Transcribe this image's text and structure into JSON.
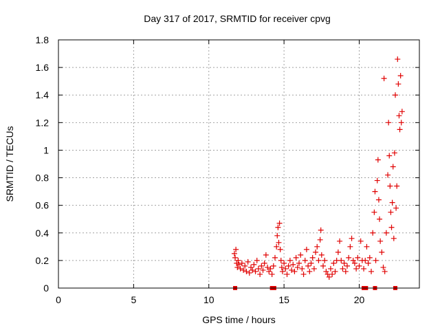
{
  "chart_data": {
    "type": "scatter",
    "title": "Day 317 of 2017, SRMTID for receiver cpvg",
    "xlabel": "GPS time / hours",
    "ylabel": "SRMTID / TECUs",
    "xlim": [
      0,
      24
    ],
    "ylim": [
      0,
      1.8
    ],
    "xticks": [
      0,
      5,
      10,
      15,
      20
    ],
    "yticks": [
      0,
      0.2,
      0.4,
      0.6,
      0.8,
      1,
      1.2,
      1.4,
      1.6,
      1.8
    ],
    "xtick_labels": [
      "0",
      "5",
      "10",
      "15",
      "20"
    ],
    "ytick_labels": [
      "0",
      "0.2",
      "0.4",
      "0.6",
      "0.8",
      "1",
      "1.2",
      "1.4",
      "1.6",
      "1.8"
    ],
    "grid": true,
    "marker": "+",
    "color": "#e00000",
    "series": [
      {
        "name": "SRMTID",
        "points": [
          [
            11.7,
            0.25
          ],
          [
            11.75,
            0.22
          ],
          [
            11.8,
            0.28
          ],
          [
            11.85,
            0.18
          ],
          [
            11.9,
            0.15
          ],
          [
            11.95,
            0.2
          ],
          [
            12.0,
            0.17
          ],
          [
            12.1,
            0.14
          ],
          [
            12.2,
            0.18
          ],
          [
            12.3,
            0.13
          ],
          [
            12.4,
            0.16
          ],
          [
            12.5,
            0.12
          ],
          [
            12.6,
            0.19
          ],
          [
            12.7,
            0.11
          ],
          [
            12.8,
            0.15
          ],
          [
            12.9,
            0.13
          ],
          [
            13.0,
            0.17
          ],
          [
            13.1,
            0.12
          ],
          [
            13.2,
            0.2
          ],
          [
            13.3,
            0.14
          ],
          [
            13.4,
            0.1
          ],
          [
            13.5,
            0.16
          ],
          [
            13.6,
            0.13
          ],
          [
            13.7,
            0.18
          ],
          [
            13.8,
            0.24
          ],
          [
            13.9,
            0.15
          ],
          [
            14.0,
            0.12
          ],
          [
            14.1,
            0.14
          ],
          [
            14.2,
            0.1
          ],
          [
            14.3,
            0.16
          ],
          [
            14.4,
            0.22
          ],
          [
            14.5,
            0.3
          ],
          [
            14.55,
            0.38
          ],
          [
            14.6,
            0.44
          ],
          [
            14.65,
            0.33
          ],
          [
            14.7,
            0.47
          ],
          [
            14.75,
            0.28
          ],
          [
            14.8,
            0.2
          ],
          [
            14.85,
            0.15
          ],
          [
            14.9,
            0.12
          ],
          [
            15.0,
            0.18
          ],
          [
            15.1,
            0.14
          ],
          [
            15.2,
            0.1
          ],
          [
            15.3,
            0.16
          ],
          [
            15.4,
            0.2
          ],
          [
            15.5,
            0.13
          ],
          [
            15.6,
            0.17
          ],
          [
            15.7,
            0.12
          ],
          [
            15.8,
            0.22
          ],
          [
            15.9,
            0.15
          ],
          [
            16.0,
            0.18
          ],
          [
            16.1,
            0.24
          ],
          [
            16.2,
            0.14
          ],
          [
            16.3,
            0.1
          ],
          [
            16.4,
            0.2
          ],
          [
            16.5,
            0.28
          ],
          [
            16.6,
            0.16
          ],
          [
            16.7,
            0.12
          ],
          [
            16.8,
            0.18
          ],
          [
            16.9,
            0.22
          ],
          [
            17.0,
            0.14
          ],
          [
            17.1,
            0.26
          ],
          [
            17.2,
            0.3
          ],
          [
            17.3,
            0.2
          ],
          [
            17.4,
            0.35
          ],
          [
            17.45,
            0.42
          ],
          [
            17.5,
            0.24
          ],
          [
            17.6,
            0.16
          ],
          [
            17.7,
            0.2
          ],
          [
            17.8,
            0.12
          ],
          [
            17.9,
            0.1
          ],
          [
            18.0,
            0.08
          ],
          [
            18.1,
            0.14
          ],
          [
            18.2,
            0.1
          ],
          [
            18.3,
            0.18
          ],
          [
            18.4,
            0.12
          ],
          [
            18.5,
            0.2
          ],
          [
            18.6,
            0.26
          ],
          [
            18.7,
            0.34
          ],
          [
            18.8,
            0.2
          ],
          [
            18.9,
            0.14
          ],
          [
            19.0,
            0.18
          ],
          [
            19.1,
            0.12
          ],
          [
            19.2,
            0.16
          ],
          [
            19.3,
            0.22
          ],
          [
            19.4,
            0.3
          ],
          [
            19.5,
            0.36
          ],
          [
            19.6,
            0.2
          ],
          [
            19.7,
            0.18
          ],
          [
            19.8,
            0.14
          ],
          [
            19.9,
            0.22
          ],
          [
            20.0,
            0.16
          ],
          [
            20.1,
            0.34
          ],
          [
            20.2,
            0.2
          ],
          [
            20.3,
            0.14
          ],
          [
            20.4,
            0.2
          ],
          [
            20.5,
            0.3
          ],
          [
            20.6,
            0.18
          ],
          [
            20.7,
            0.22
          ],
          [
            20.8,
            0.12
          ],
          [
            20.9,
            0.4
          ],
          [
            21.0,
            0.55
          ],
          [
            21.05,
            0.7
          ],
          [
            21.1,
            0.2
          ],
          [
            21.2,
            0.78
          ],
          [
            21.25,
            0.93
          ],
          [
            21.3,
            0.64
          ],
          [
            21.35,
            0.5
          ],
          [
            21.4,
            0.34
          ],
          [
            21.5,
            0.26
          ],
          [
            21.6,
            0.15
          ],
          [
            21.65,
            1.52
          ],
          [
            21.7,
            0.12
          ],
          [
            21.8,
            0.4
          ],
          [
            21.9,
            0.82
          ],
          [
            21.95,
            1.2
          ],
          [
            22.0,
            0.96
          ],
          [
            22.05,
            0.74
          ],
          [
            22.1,
            0.55
          ],
          [
            22.15,
            0.44
          ],
          [
            22.2,
            0.62
          ],
          [
            22.25,
            0.88
          ],
          [
            22.3,
            0.36
          ],
          [
            22.35,
            0.98
          ],
          [
            22.4,
            1.4
          ],
          [
            22.45,
            0.58
          ],
          [
            22.5,
            0.74
          ],
          [
            22.55,
            1.66
          ],
          [
            22.6,
            1.48
          ],
          [
            22.65,
            1.25
          ],
          [
            22.7,
            1.15
          ],
          [
            22.75,
            1.54
          ],
          [
            22.8,
            1.2
          ],
          [
            22.85,
            1.28
          ]
        ]
      }
    ],
    "bottom_markers_x": [
      11.75,
      14.2,
      14.35,
      20.3,
      20.45,
      21.05,
      22.4
    ]
  }
}
